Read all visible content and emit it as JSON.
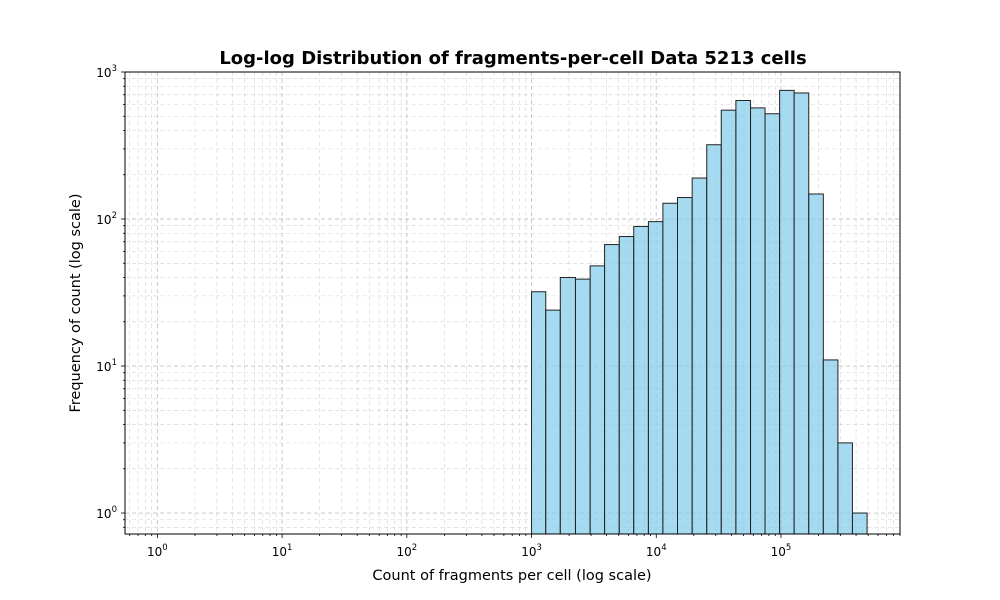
{
  "chart_data": {
    "type": "bar",
    "title": "Log-log Distribution of fragments-per-cell Data 5213 cells",
    "xlabel": "Count of fragments per cell (log scale)",
    "ylabel": "Frequency of count (log scale)",
    "x_scale": "log",
    "y_scale": "log",
    "xlim": [
      0.55,
      900000
    ],
    "ylim": [
      0.72,
      1000
    ],
    "grid": true,
    "bar_color": "#87ceeb",
    "bar_edge_color": "#222222",
    "x_tick_labels": [
      {
        "base": "10",
        "exp": "0",
        "value": 1
      },
      {
        "base": "10",
        "exp": "1",
        "value": 10
      },
      {
        "base": "10",
        "exp": "2",
        "value": 100
      },
      {
        "base": "10",
        "exp": "3",
        "value": 1000
      },
      {
        "base": "10",
        "exp": "4",
        "value": 10000
      },
      {
        "base": "10",
        "exp": "5",
        "value": 100000
      }
    ],
    "y_tick_labels": [
      {
        "base": "10",
        "exp": "0",
        "value": 1
      },
      {
        "base": "10",
        "exp": "1",
        "value": 10
      },
      {
        "base": "10",
        "exp": "2",
        "value": 100
      },
      {
        "base": "10",
        "exp": "3",
        "value": 1000
      }
    ],
    "bin_edges": [
      1000,
      1300,
      1700,
      2250,
      2950,
      3850,
      5050,
      6600,
      8650,
      11300,
      14800,
      19400,
      25400,
      33200,
      43500,
      57000,
      74500,
      97500,
      127500,
      167000,
      218500,
      286000,
      374000,
      490000
    ],
    "values": [
      32,
      24,
      40,
      39,
      48,
      67,
      76,
      89,
      96,
      128,
      140,
      190,
      320,
      550,
      640,
      570,
      520,
      750,
      720,
      148,
      11,
      3,
      1
    ]
  }
}
